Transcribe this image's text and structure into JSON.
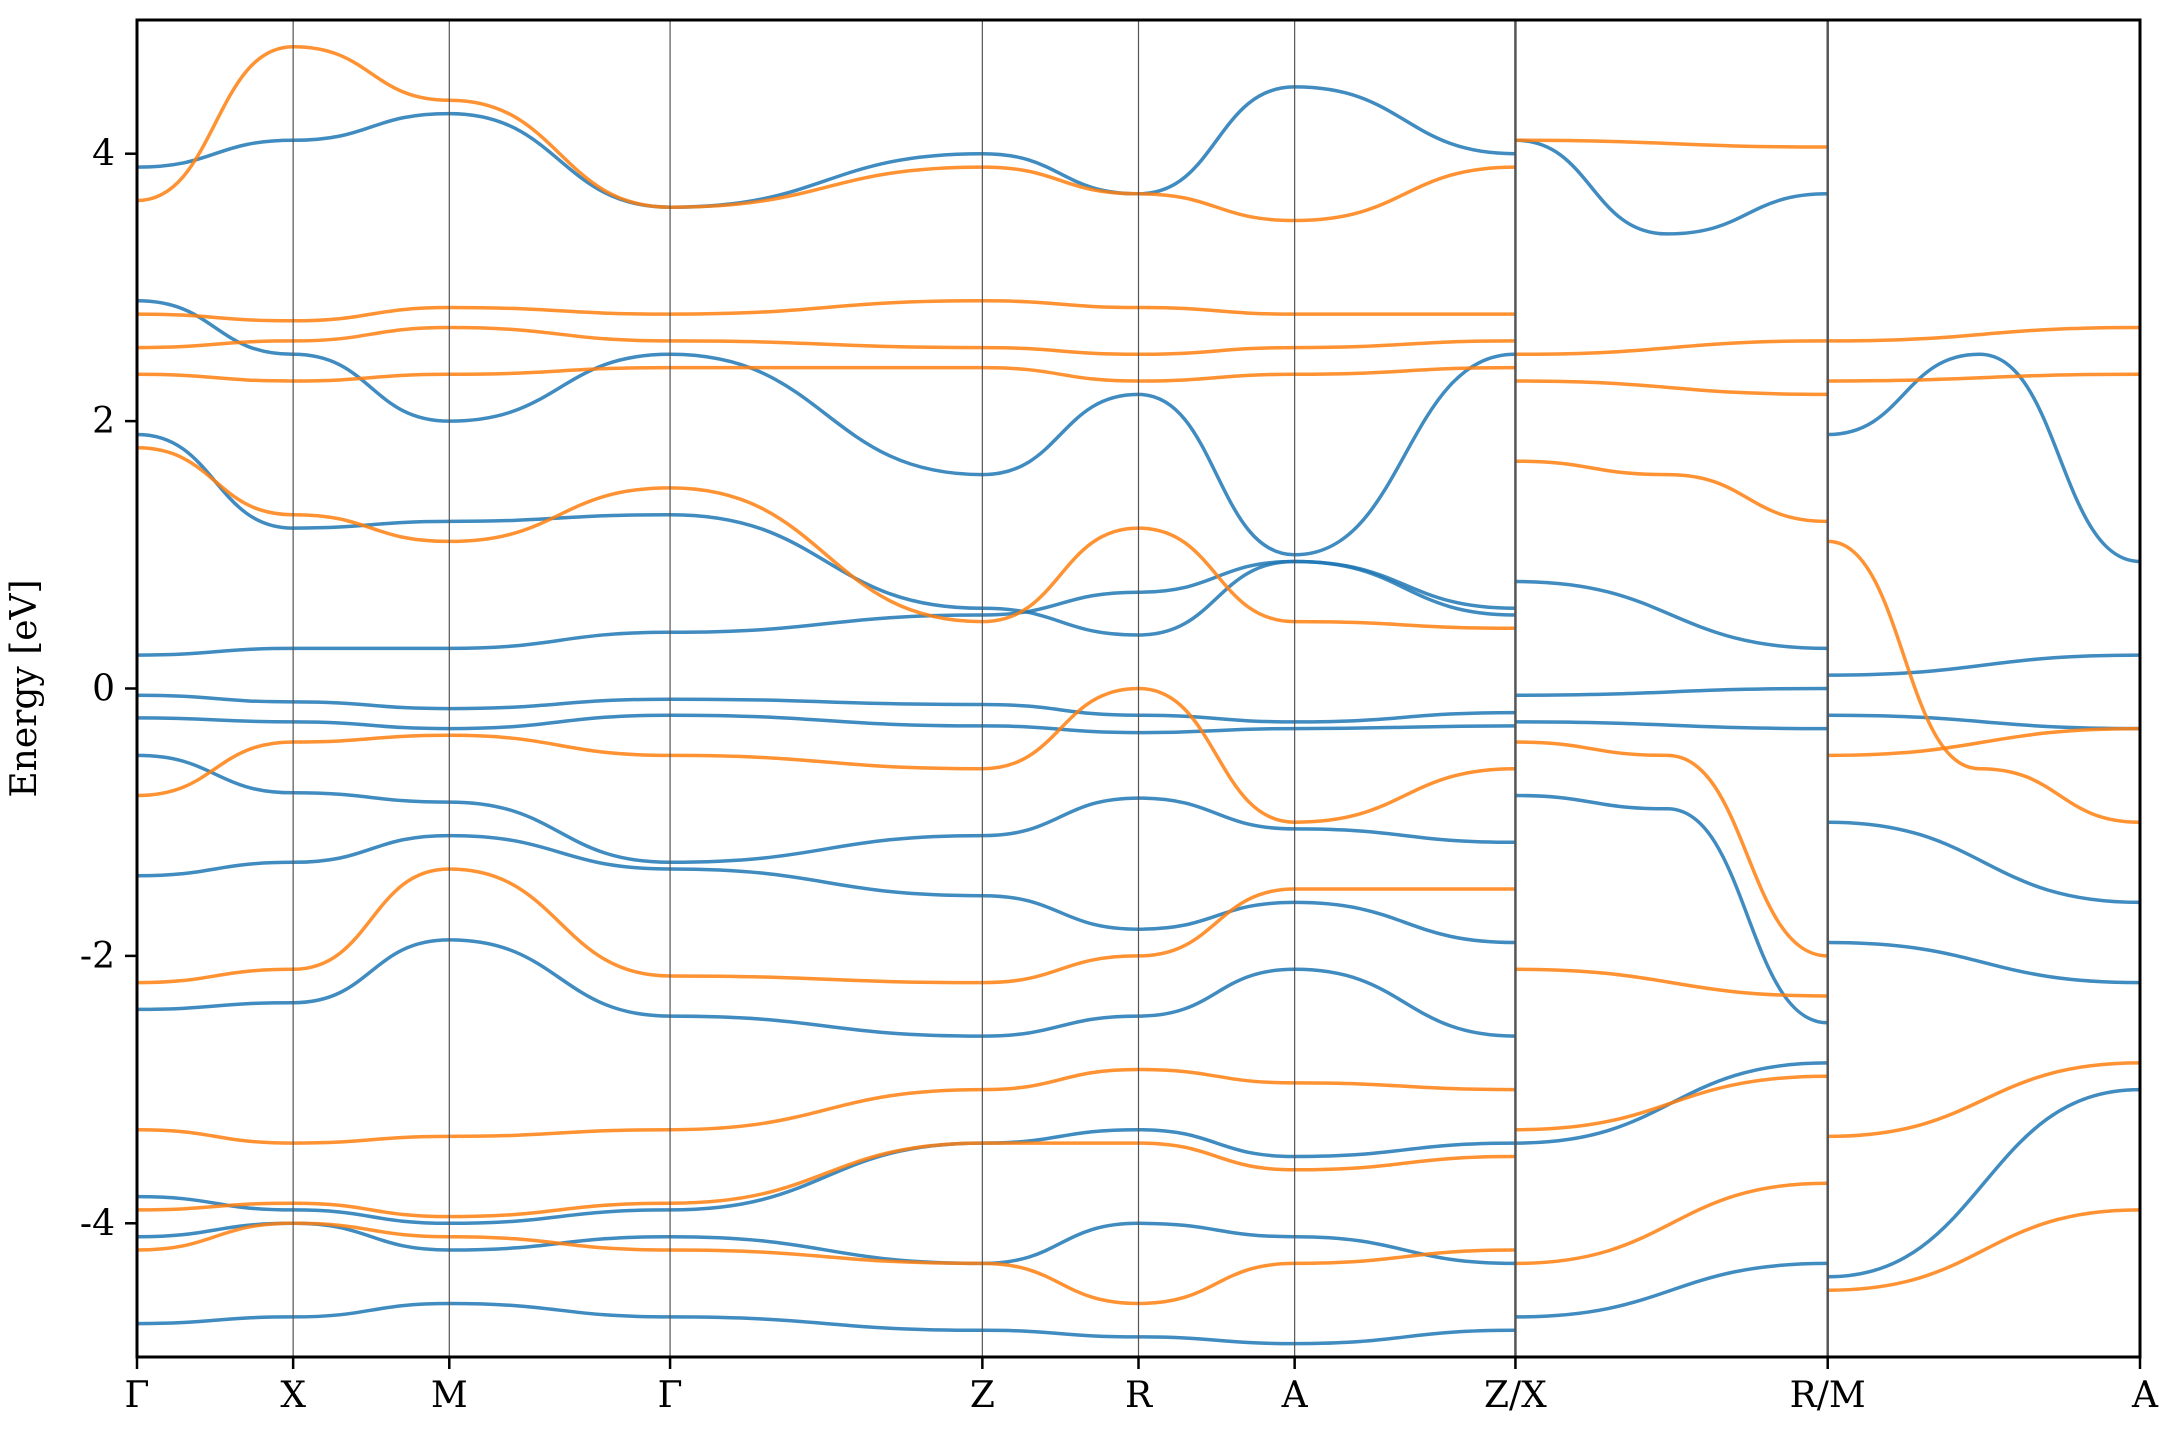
{
  "chart_data": {
    "type": "line",
    "title": "",
    "xlabel": "",
    "ylabel": "Energy [eV]",
    "ylim": [
      -5,
      5
    ],
    "yticks": [
      -4,
      -2,
      0,
      2,
      4
    ],
    "ytick_labels": [
      "-4",
      "-2",
      "0",
      "2",
      "4"
    ],
    "grid": false,
    "legend": "none",
    "kpath": {
      "labels": [
        "Γ",
        "X",
        "M",
        "Γ",
        "Z",
        "R",
        "A",
        "Z/X",
        "R/M",
        "A"
      ],
      "positions": [
        0,
        1,
        2,
        3.414,
        5.414,
        6.414,
        7.414,
        8.828,
        10.828,
        12.828
      ],
      "segment_breaks": [
        8.828,
        10.828
      ]
    },
    "series_colors": {
      "blue": "#1f77b4",
      "orange": "#ff7f0e"
    },
    "series": [
      {
        "color": "blue",
        "k": [
          0,
          1,
          2,
          3.414,
          5.414,
          6.414,
          7.414,
          8.828
        ],
        "energy": [
          -0.05,
          -0.1,
          -0.15,
          -0.08,
          -0.12,
          -0.2,
          -0.25,
          -0.18
        ]
      },
      {
        "color": "blue",
        "k": [
          0,
          1,
          2,
          3.414,
          5.414,
          6.414,
          7.414,
          8.828
        ],
        "energy": [
          -0.22,
          -0.25,
          -0.3,
          -0.2,
          -0.28,
          -0.33,
          -0.3,
          -0.28
        ]
      },
      {
        "color": "blue",
        "k": [
          0,
          1,
          2,
          3.414,
          5.414,
          6.414,
          7.414,
          8.828
        ],
        "energy": [
          0.25,
          0.3,
          0.3,
          0.42,
          0.55,
          0.72,
          0.95,
          0.6
        ]
      },
      {
        "color": "blue",
        "k": [
          0,
          1,
          2,
          3.414,
          5.414,
          6.414,
          7.414,
          8.828
        ],
        "energy": [
          -0.5,
          -0.78,
          -0.85,
          -1.3,
          -1.1,
          -0.82,
          -1.05,
          -1.15
        ]
      },
      {
        "color": "blue",
        "k": [
          0,
          1,
          2,
          3.414,
          5.414,
          6.414,
          7.414,
          8.828
        ],
        "energy": [
          -1.4,
          -1.3,
          -1.1,
          -1.35,
          -1.55,
          -1.8,
          -1.6,
          -1.9
        ]
      },
      {
        "color": "blue",
        "k": [
          0,
          1,
          2,
          3.414,
          5.414,
          6.414,
          7.414,
          8.828
        ],
        "energy": [
          -2.4,
          -2.35,
          -1.88,
          -2.45,
          -2.6,
          -2.45,
          -2.1,
          -2.6
        ]
      },
      {
        "color": "blue",
        "k": [
          0,
          1,
          2,
          3.414,
          5.414,
          6.414,
          7.414,
          8.828
        ],
        "energy": [
          1.9,
          1.2,
          1.25,
          1.3,
          0.6,
          0.4,
          0.95,
          0.55
        ]
      },
      {
        "color": "blue",
        "k": [
          0,
          1,
          2,
          3.414,
          5.414,
          6.414,
          7.414,
          8.828
        ],
        "energy": [
          2.9,
          2.5,
          2.0,
          2.5,
          1.6,
          2.2,
          1.0,
          2.5
        ]
      },
      {
        "color": "blue",
        "k": [
          0,
          1,
          2,
          3.414,
          5.414,
          6.414,
          7.414,
          8.828
        ],
        "energy": [
          -3.8,
          -3.9,
          -4.0,
          -3.9,
          -3.4,
          -3.3,
          -3.5,
          -3.4
        ]
      },
      {
        "color": "blue",
        "k": [
          0,
          1,
          2,
          3.414,
          5.414,
          6.414,
          7.414,
          8.828
        ],
        "energy": [
          -4.1,
          -4.0,
          -4.2,
          -4.1,
          -4.3,
          -4.0,
          -4.1,
          -4.3
        ]
      },
      {
        "color": "blue",
        "k": [
          0,
          1,
          2,
          3.414,
          5.414,
          6.414,
          7.414,
          8.828
        ],
        "energy": [
          -4.75,
          -4.7,
          -4.6,
          -4.7,
          -4.8,
          -4.85,
          -4.9,
          -4.8
        ]
      },
      {
        "color": "blue",
        "k": [
          0,
          1,
          2,
          3.414,
          5.414,
          6.414,
          7.414,
          8.828
        ],
        "energy": [
          3.9,
          4.1,
          4.3,
          3.6,
          4.0,
          3.7,
          4.5,
          4.0
        ]
      },
      {
        "color": "blue",
        "k": [
          8.828,
          10.828
        ],
        "energy": [
          -0.05,
          0.0
        ]
      },
      {
        "color": "blue",
        "k": [
          8.828,
          10.828
        ],
        "energy": [
          -0.25,
          -0.3
        ]
      },
      {
        "color": "blue",
        "k": [
          8.828,
          10.828
        ],
        "energy": [
          0.8,
          0.3
        ]
      },
      {
        "color": "blue",
        "k": [
          8.828,
          9.8,
          10.828
        ],
        "energy": [
          -0.8,
          -0.9,
          -2.5
        ]
      },
      {
        "color": "blue",
        "k": [
          8.828,
          10.828
        ],
        "energy": [
          -3.4,
          -2.8
        ]
      },
      {
        "color": "blue",
        "k": [
          8.828,
          10.828
        ],
        "energy": [
          -4.7,
          -4.3
        ]
      },
      {
        "color": "blue",
        "k": [
          8.828,
          9.8,
          10.828
        ],
        "energy": [
          4.1,
          3.4,
          3.7
        ]
      },
      {
        "color": "blue",
        "k": [
          10.828,
          12.828
        ],
        "energy": [
          -0.2,
          -0.3
        ]
      },
      {
        "color": "blue",
        "k": [
          10.828,
          12.828
        ],
        "energy": [
          0.1,
          0.25
        ]
      },
      {
        "color": "blue",
        "k": [
          10.828,
          12.828
        ],
        "energy": [
          -1.9,
          -2.2
        ]
      },
      {
        "color": "blue",
        "k": [
          10.828,
          12.828
        ],
        "energy": [
          -1.0,
          -1.6
        ]
      },
      {
        "color": "blue",
        "k": [
          10.828,
          12.828
        ],
        "energy": [
          -4.4,
          -3.0
        ]
      },
      {
        "color": "blue",
        "k": [
          10.828,
          11.8,
          12.828
        ],
        "energy": [
          1.9,
          2.5,
          0.95
        ]
      },
      {
        "color": "orange",
        "k": [
          0,
          1,
          2,
          3.414,
          5.414,
          6.414,
          7.414,
          8.828
        ],
        "energy": [
          2.55,
          2.6,
          2.7,
          2.6,
          2.55,
          2.5,
          2.55,
          2.6
        ]
      },
      {
        "color": "orange",
        "k": [
          0,
          1,
          2,
          3.414,
          5.414,
          6.414,
          7.414,
          8.828
        ],
        "energy": [
          2.35,
          2.3,
          2.35,
          2.4,
          2.4,
          2.3,
          2.35,
          2.4
        ]
      },
      {
        "color": "orange",
        "k": [
          0,
          1,
          2,
          3.414,
          5.414,
          6.414,
          7.414,
          8.828
        ],
        "energy": [
          2.8,
          2.75,
          2.85,
          2.8,
          2.9,
          2.85,
          2.8,
          2.8
        ]
      },
      {
        "color": "orange",
        "k": [
          0,
          1,
          2,
          3.414,
          5.414,
          6.414,
          7.414,
          8.828
        ],
        "energy": [
          1.8,
          1.3,
          1.1,
          1.5,
          0.5,
          1.2,
          0.5,
          0.45
        ]
      },
      {
        "color": "orange",
        "k": [
          0,
          1,
          2,
          3.414,
          5.414,
          6.414,
          7.414,
          8.828
        ],
        "energy": [
          -0.8,
          -0.4,
          -0.35,
          -0.5,
          -0.6,
          0.0,
          -1.0,
          -0.6
        ]
      },
      {
        "color": "orange",
        "k": [
          0,
          1,
          2,
          3.414,
          5.414,
          6.414,
          7.414,
          8.828
        ],
        "energy": [
          -2.2,
          -2.1,
          -1.35,
          -2.15,
          -2.2,
          -2.0,
          -1.5,
          -1.5
        ]
      },
      {
        "color": "orange",
        "k": [
          0,
          1,
          2,
          3.414,
          5.414,
          6.414,
          7.414,
          8.828
        ],
        "energy": [
          -3.3,
          -3.4,
          -3.35,
          -3.3,
          -3.0,
          -2.85,
          -2.95,
          -3.0
        ]
      },
      {
        "color": "orange",
        "k": [
          0,
          1,
          2,
          3.414,
          5.414,
          6.414,
          7.414,
          8.828
        ],
        "energy": [
          -3.9,
          -3.85,
          -3.95,
          -3.85,
          -3.4,
          -3.4,
          -3.6,
          -3.5
        ]
      },
      {
        "color": "orange",
        "k": [
          0,
          1,
          2,
          3.414,
          5.414,
          6.414,
          7.414,
          8.828
        ],
        "energy": [
          -4.2,
          -4.0,
          -4.1,
          -4.2,
          -4.3,
          -4.6,
          -4.3,
          -4.2
        ]
      },
      {
        "color": "orange",
        "k": [
          0,
          1,
          2,
          3.414,
          5.414,
          6.414,
          7.414,
          8.828
        ],
        "energy": [
          3.65,
          4.8,
          4.4,
          3.6,
          3.9,
          3.7,
          3.5,
          3.9
        ]
      },
      {
        "color": "orange",
        "k": [
          8.828,
          10.828
        ],
        "energy": [
          2.5,
          2.6
        ]
      },
      {
        "color": "orange",
        "k": [
          8.828,
          10.828
        ],
        "energy": [
          2.3,
          2.2
        ]
      },
      {
        "color": "orange",
        "k": [
          8.828,
          9.8,
          10.828
        ],
        "energy": [
          1.7,
          1.6,
          1.25
        ]
      },
      {
        "color": "orange",
        "k": [
          8.828,
          9.8,
          10.828
        ],
        "energy": [
          -0.4,
          -0.5,
          -2.0
        ]
      },
      {
        "color": "orange",
        "k": [
          8.828,
          10.828
        ],
        "energy": [
          -2.1,
          -2.3
        ]
      },
      {
        "color": "orange",
        "k": [
          8.828,
          10.828
        ],
        "energy": [
          -3.3,
          -2.9
        ]
      },
      {
        "color": "orange",
        "k": [
          8.828,
          10.828
        ],
        "energy": [
          -4.3,
          -3.7
        ]
      },
      {
        "color": "orange",
        "k": [
          8.828,
          10.828
        ],
        "energy": [
          4.1,
          4.05
        ]
      },
      {
        "color": "orange",
        "k": [
          10.828,
          12.828
        ],
        "energy": [
          2.6,
          2.7
        ]
      },
      {
        "color": "orange",
        "k": [
          10.828,
          12.828
        ],
        "energy": [
          2.3,
          2.35
        ]
      },
      {
        "color": "orange",
        "k": [
          10.828,
          11.8,
          12.828
        ],
        "energy": [
          1.1,
          -0.6,
          -1.0
        ]
      },
      {
        "color": "orange",
        "k": [
          10.828,
          12.828
        ],
        "energy": [
          -3.35,
          -2.8
        ]
      },
      {
        "color": "orange",
        "k": [
          10.828,
          12.828
        ],
        "energy": [
          -4.5,
          -3.9
        ]
      },
      {
        "color": "orange",
        "k": [
          10.828,
          12.828
        ],
        "energy": [
          -0.5,
          -0.3
        ]
      }
    ]
  }
}
